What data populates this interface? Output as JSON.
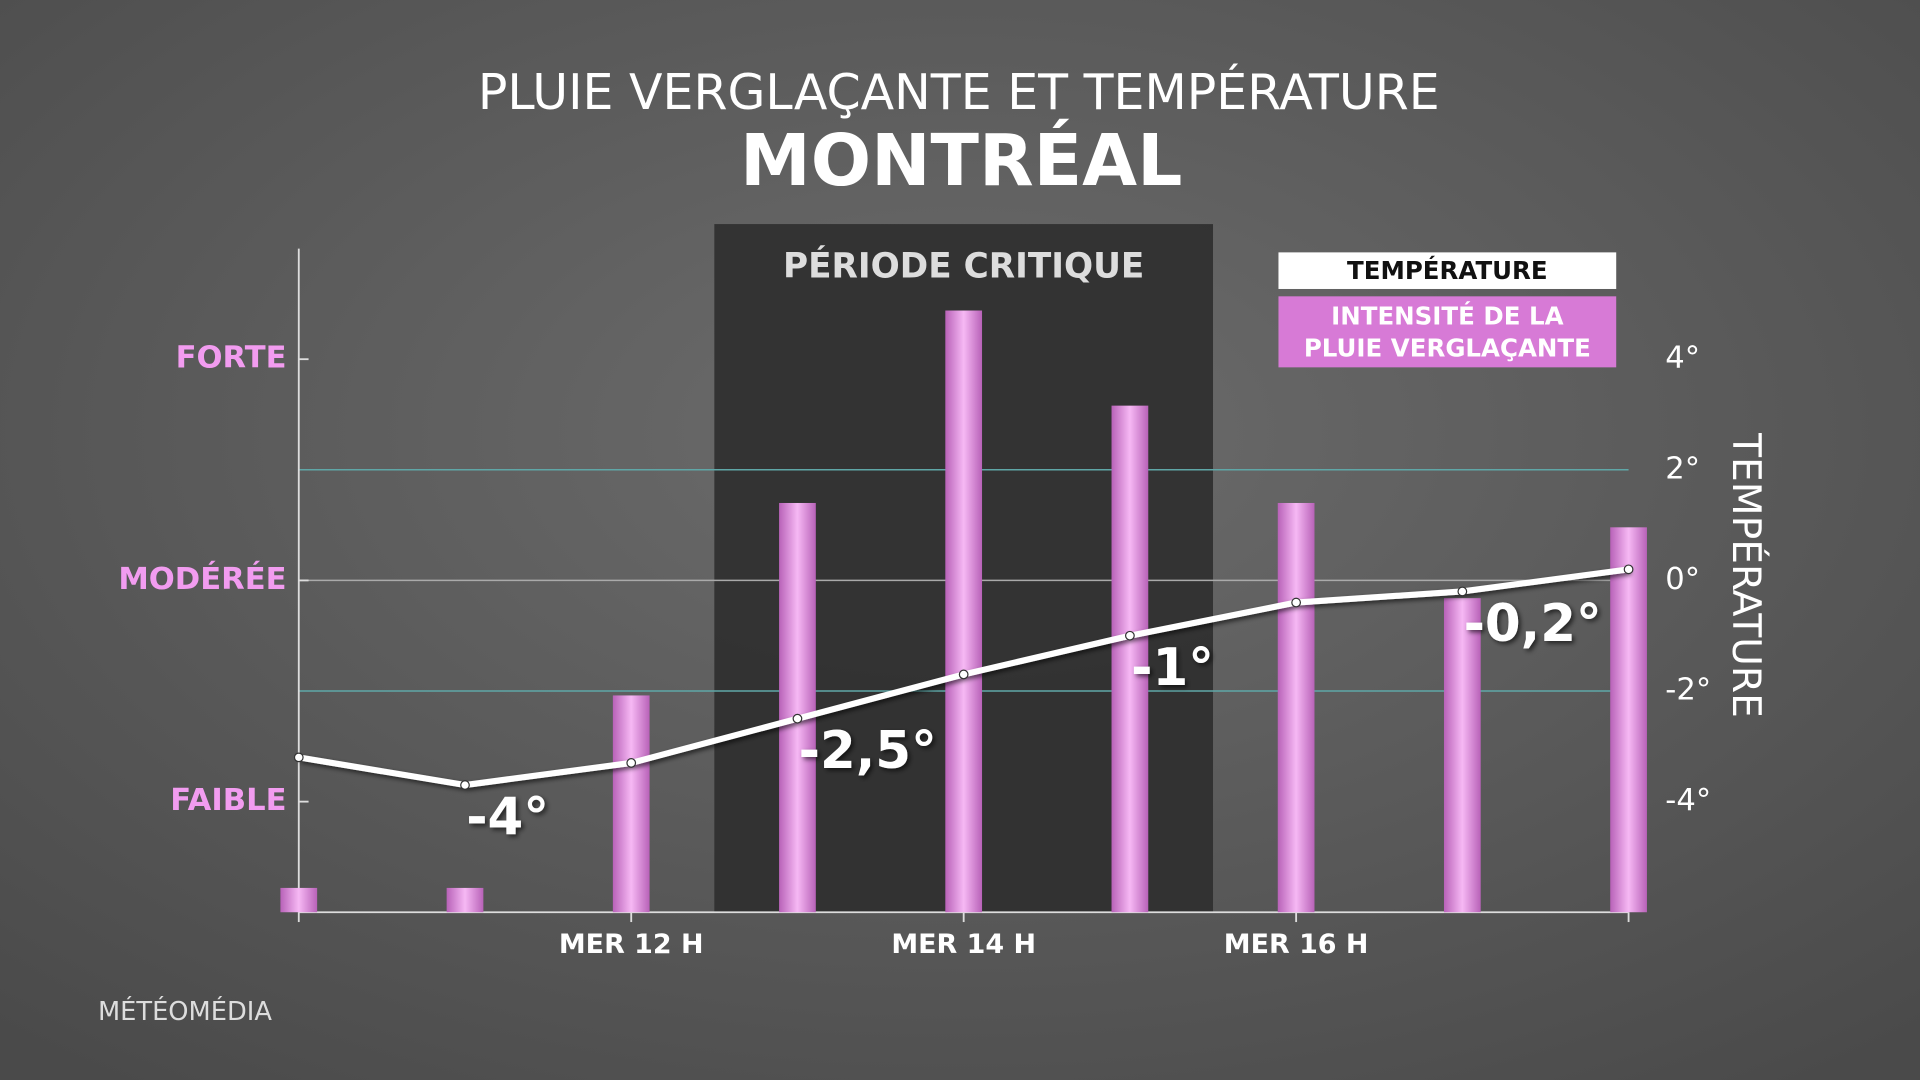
{
  "chart_data": {
    "type": "bar_line",
    "title": "PLUIE VERGLAÇANTE ET TEMPÉRATURE",
    "subtitle": "MONTRÉAL",
    "y2label": "TEMPÉRATURE",
    "source": "MÉTÉOMÉDIA",
    "x": [
      10,
      11,
      12,
      13,
      14,
      15,
      16,
      17,
      18
    ],
    "xlim": [
      10,
      18
    ],
    "xticks": [
      {
        "value": 12,
        "label": "MER 12 H"
      },
      {
        "value": 14,
        "label": "MER 14 H"
      },
      {
        "value": 16,
        "label": "MER 16 H"
      }
    ],
    "ylim": [
      0.5,
      3.5
    ],
    "yticks": [
      {
        "value": 1,
        "label": "FAIBLE"
      },
      {
        "value": 2,
        "label": "MODÉRÉE"
      },
      {
        "value": 3,
        "label": "FORTE"
      }
    ],
    "y2lim": [
      -6,
      6
    ],
    "y2ticks": [
      {
        "value": -4,
        "label": "-4°"
      },
      {
        "value": -2,
        "label": "-2°"
      },
      {
        "value": 0,
        "label": "0°"
      },
      {
        "value": 2,
        "label": "2°"
      },
      {
        "value": 4,
        "label": "4°"
      }
    ],
    "y2grid": [
      -2,
      0,
      2
    ],
    "highlight": {
      "label": "PÉRIODE CRITIQUE",
      "from": 12.5,
      "to": 15.5
    },
    "series": [
      {
        "name": "TEMPÉRATURE",
        "type": "line",
        "axis": "y2",
        "color": "#ffffff",
        "values": [
          -3.2,
          -3.7,
          -3.3,
          -2.5,
          -1.7,
          -1.0,
          -0.4,
          -0.2,
          0.2
        ],
        "value_labels": [
          null,
          "-4°",
          null,
          "-2,5°",
          null,
          "-1°",
          null,
          "-0,2°",
          null
        ]
      },
      {
        "name": "INTENSITÉ DE LA PLUIE VERGLAÇANTE",
        "type": "bar",
        "color": "#d77ad6",
        "values": [
          0.61,
          0.61,
          1.48,
          2.35,
          3.22,
          2.79,
          2.35,
          1.92,
          2.24
        ]
      }
    ]
  }
}
